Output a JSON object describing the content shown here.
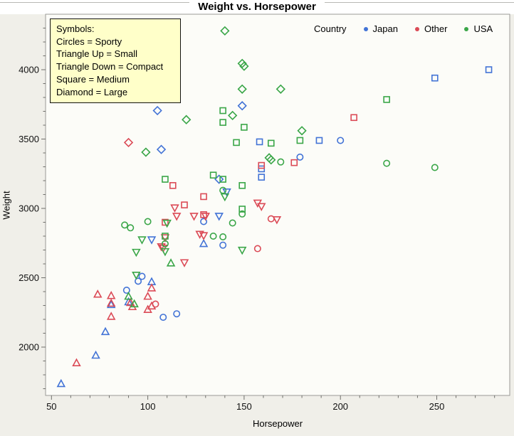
{
  "title": "Weight vs. Horsepower",
  "symbols_box": {
    "lines": [
      "Symbols:",
      "Circles = Sporty",
      "Triangle Up = Small",
      "Triangle Down = Compact",
      "Square = Medium",
      "Diamond = Large"
    ]
  },
  "country_legend": {
    "label": "Country",
    "entries": [
      {
        "name": "Japan",
        "color": "#4273D6"
      },
      {
        "name": "Other",
        "color": "#DB4A56"
      },
      {
        "name": "USA",
        "color": "#3AA648"
      }
    ]
  },
  "chart_data": {
    "type": "scatter",
    "title": "Weight vs. Horsepower",
    "xlabel": "Horsepower",
    "ylabel": "Weight",
    "xlim": [
      47,
      287
    ],
    "ylim": [
      1660,
      4400
    ],
    "x_ticks": [
      50,
      100,
      150,
      200,
      250
    ],
    "y_ticks": [
      2000,
      2500,
      3000,
      3500,
      4000
    ],
    "x_minor": {
      "start": 50,
      "end": 280,
      "step": 10
    },
    "y_minor": {
      "start": 1700,
      "end": 4300,
      "step": 100
    },
    "grid": false,
    "legend_position": "top-right",
    "shape_key": {
      "circle": "Sporty",
      "triangle-up": "Small",
      "triangle-down": "Compact",
      "square": "Medium",
      "diamond": "Large"
    },
    "series": [
      {
        "name": "Japan",
        "color": "#4273D6",
        "points": [
          [
            277,
            4000,
            "square"
          ],
          [
            249,
            3940,
            "square"
          ],
          [
            189,
            3490,
            "square"
          ],
          [
            158,
            3480,
            "square"
          ],
          [
            159,
            3285,
            "square"
          ],
          [
            159,
            3225,
            "square"
          ],
          [
            149,
            3740,
            "diamond"
          ],
          [
            105,
            3705,
            "diamond"
          ],
          [
            107,
            3425,
            "diamond"
          ],
          [
            137,
            3210,
            "diamond"
          ],
          [
            200,
            3490,
            "circle"
          ],
          [
            179,
            3370,
            "circle"
          ],
          [
            129,
            2905,
            "circle"
          ],
          [
            139,
            2735,
            "circle"
          ],
          [
            97,
            2510,
            "circle"
          ],
          [
            95,
            2475,
            "circle"
          ],
          [
            89,
            2410,
            "circle"
          ],
          [
            115,
            2240,
            "circle"
          ],
          [
            108,
            2215,
            "circle"
          ],
          [
            141,
            3120,
            "triangle-down"
          ],
          [
            137,
            2945,
            "triangle-down"
          ],
          [
            102,
            2775,
            "triangle-down"
          ],
          [
            129,
            2745,
            "triangle-up"
          ],
          [
            102,
            2470,
            "triangle-up"
          ],
          [
            90,
            2325,
            "triangle-up"
          ],
          [
            81,
            2305,
            "triangle-up"
          ],
          [
            78,
            2110,
            "triangle-up"
          ],
          [
            73,
            1940,
            "triangle-up"
          ],
          [
            55,
            1735,
            "triangle-up"
          ]
        ]
      },
      {
        "name": "Other",
        "color": "#DB4A56",
        "points": [
          [
            90,
            3475,
            "diamond"
          ],
          [
            207,
            3655,
            "square"
          ],
          [
            176,
            3330,
            "square"
          ],
          [
            159,
            3310,
            "square"
          ],
          [
            113,
            3165,
            "square"
          ],
          [
            129,
            3085,
            "square"
          ],
          [
            119,
            3025,
            "square"
          ],
          [
            129,
            2955,
            "square"
          ],
          [
            109,
            2900,
            "square"
          ],
          [
            164,
            2925,
            "circle"
          ],
          [
            157,
            2710,
            "circle"
          ],
          [
            104,
            2310,
            "circle"
          ],
          [
            157,
            3040,
            "triangle-down"
          ],
          [
            159,
            3015,
            "triangle-down"
          ],
          [
            114,
            3005,
            "triangle-down"
          ],
          [
            115,
            2945,
            "triangle-down"
          ],
          [
            124,
            2945,
            "triangle-down"
          ],
          [
            130,
            2945,
            "triangle-down"
          ],
          [
            167,
            2920,
            "triangle-down"
          ],
          [
            127,
            2815,
            "triangle-down"
          ],
          [
            129,
            2805,
            "triangle-down"
          ],
          [
            109,
            2790,
            "triangle-down"
          ],
          [
            107,
            2725,
            "triangle-down"
          ],
          [
            108,
            2715,
            "triangle-down"
          ],
          [
            119,
            2610,
            "triangle-down"
          ],
          [
            102,
            2425,
            "triangle-up"
          ],
          [
            74,
            2380,
            "triangle-up"
          ],
          [
            81,
            2370,
            "triangle-up"
          ],
          [
            100,
            2365,
            "triangle-up"
          ],
          [
            91,
            2320,
            "triangle-up"
          ],
          [
            81,
            2315,
            "triangle-up"
          ],
          [
            102,
            2295,
            "triangle-up"
          ],
          [
            92,
            2290,
            "triangle-up"
          ],
          [
            100,
            2270,
            "triangle-up"
          ],
          [
            81,
            2220,
            "triangle-up"
          ],
          [
            63,
            1885,
            "triangle-up"
          ]
        ]
      },
      {
        "name": "USA",
        "color": "#3AA648",
        "points": [
          [
            140,
            4280,
            "diamond"
          ],
          [
            149,
            4045,
            "diamond"
          ],
          [
            150,
            4025,
            "diamond"
          ],
          [
            149,
            3860,
            "diamond"
          ],
          [
            169,
            3860,
            "diamond"
          ],
          [
            144,
            3670,
            "diamond"
          ],
          [
            120,
            3640,
            "diamond"
          ],
          [
            180,
            3560,
            "diamond"
          ],
          [
            99,
            3405,
            "diamond"
          ],
          [
            163,
            3365,
            "diamond"
          ],
          [
            164,
            3350,
            "diamond"
          ],
          [
            224,
            3785,
            "square"
          ],
          [
            139,
            3705,
            "square"
          ],
          [
            139,
            3620,
            "square"
          ],
          [
            150,
            3585,
            "square"
          ],
          [
            179,
            3490,
            "square"
          ],
          [
            146,
            3475,
            "square"
          ],
          [
            164,
            3470,
            "square"
          ],
          [
            134,
            3240,
            "square"
          ],
          [
            139,
            3210,
            "square"
          ],
          [
            109,
            3210,
            "square"
          ],
          [
            149,
            3165,
            "square"
          ],
          [
            149,
            2995,
            "square"
          ],
          [
            109,
            2800,
            "square"
          ],
          [
            169,
            3335,
            "circle"
          ],
          [
            224,
            3325,
            "circle"
          ],
          [
            249,
            3295,
            "circle"
          ],
          [
            139,
            3130,
            "circle"
          ],
          [
            149,
            2960,
            "circle"
          ],
          [
            100,
            2905,
            "circle"
          ],
          [
            144,
            2895,
            "circle"
          ],
          [
            88,
            2880,
            "circle"
          ],
          [
            91,
            2860,
            "circle"
          ],
          [
            134,
            2800,
            "circle"
          ],
          [
            139,
            2795,
            "circle"
          ],
          [
            109,
            2745,
            "circle"
          ],
          [
            140,
            3085,
            "triangle-down"
          ],
          [
            110,
            2895,
            "triangle-down"
          ],
          [
            97,
            2775,
            "triangle-down"
          ],
          [
            94,
            2685,
            "triangle-down"
          ],
          [
            109,
            2690,
            "triangle-down"
          ],
          [
            149,
            2700,
            "triangle-down"
          ],
          [
            94,
            2520,
            "triangle-down"
          ],
          [
            112,
            2605,
            "triangle-up"
          ],
          [
            90,
            2365,
            "triangle-up"
          ],
          [
            93,
            2310,
            "triangle-up"
          ]
        ]
      }
    ]
  }
}
